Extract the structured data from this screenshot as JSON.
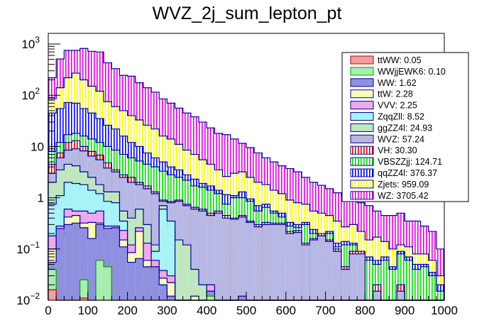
{
  "chart_data": {
    "type": "bar",
    "subtype": "stacked-histogram",
    "title": "WVZ_2j_sum_lepton_pt",
    "xlabel": "",
    "ylabel": "",
    "xlim": [
      0,
      1000
    ],
    "ylim": [
      0.01,
      1500
    ],
    "yscale": "log",
    "bin_width": 20,
    "n_bins": 50,
    "x_ticks": [
      "0",
      "100",
      "200",
      "300",
      "400",
      "500",
      "600",
      "700",
      "800",
      "900",
      "1000"
    ],
    "y_ticks": [
      {
        "value": 0.01,
        "base": "10",
        "exp": "−2"
      },
      {
        "value": 0.1,
        "base": "10",
        "exp": "−1"
      },
      {
        "value": 1,
        "base": "1",
        "exp": ""
      },
      {
        "value": 10,
        "base": "10",
        "exp": ""
      },
      {
        "value": 100,
        "base": "10",
        "exp": "2"
      },
      {
        "value": 1000,
        "base": "10",
        "exp": "3"
      }
    ],
    "legend_position": "top-right",
    "stack_order_bottom_to_top": [
      "ttWW",
      "WWjjEWK6",
      "WW",
      "ttW",
      "VVV",
      "ZqqZll",
      "ggZZ4l",
      "WVZ",
      "VH",
      "VBSZZjj",
      "qqZZ4l",
      "Zjets",
      "WZ"
    ],
    "cumulative_tops": {
      "ttWW": [
        0.016,
        0.0,
        0.0,
        0.0,
        0.011,
        0.0,
        0.0,
        0.0,
        0.0,
        0.0,
        0.0,
        0.0,
        0.0,
        0.0,
        0.0,
        0.0,
        0.0,
        0.0,
        0.0,
        0.0,
        0.0,
        0.0,
        0.0,
        0.0,
        0.0,
        0.0,
        0.0,
        0.0,
        0.0,
        0.0,
        0.0,
        0.0,
        0.0,
        0.0,
        0.0,
        0.0,
        0.0,
        0.0,
        0.0,
        0.0,
        0.0,
        0.0,
        0.0,
        0.0,
        0.0,
        0.0,
        0.0,
        0.0,
        0.0,
        0.0
      ],
      "WWjjEWK6": [
        0.04,
        0.0,
        0.0,
        0.0,
        0.025,
        0.0,
        0.06,
        0.045,
        0.0,
        0.0,
        0.0,
        0.0,
        0.0,
        0.0,
        0.0,
        0.0,
        0.0,
        0.0,
        0.0,
        0.0,
        0.012,
        0.0,
        0.0,
        0.0,
        0.0,
        0.0,
        0.0,
        0.0,
        0.0,
        0.0,
        0.0,
        0.0,
        0.0,
        0.0,
        0.0,
        0.0,
        0.0,
        0.0,
        0.0,
        0.0,
        0.0,
        0.0,
        0.0,
        0.0,
        0.0,
        0.0,
        0.0,
        0.0,
        0.0,
        0.0
      ],
      "WW": [
        0.055,
        0.25,
        0.3,
        0.32,
        0.26,
        0.16,
        0.3,
        0.25,
        0.26,
        0.11,
        0.055,
        0.065,
        0.045,
        0.045,
        0.02,
        0.012,
        0.0,
        0.0,
        0.0,
        0.0,
        0.015,
        0.0,
        0.0,
        0.0,
        0.012,
        0.0,
        0.0,
        0.0,
        0.0,
        0.0,
        0.0,
        0.0,
        0.0,
        0.0,
        0.0,
        0.0,
        0.0,
        0.0,
        0.0,
        0.0,
        0.0,
        0.0,
        0.0,
        0.0,
        0.0,
        0.0,
        0.0,
        0.0,
        0.0,
        0.0
      ],
      "ttW": [
        0.1,
        0.18,
        0.42,
        0.45,
        0.32,
        0.33,
        0.32,
        0.16,
        0.16,
        0.15,
        0.085,
        0.22,
        0.06,
        0.035,
        0.027,
        0.022,
        0.0,
        0.0,
        0.012,
        0.0,
        0.0,
        0.0,
        0.0,
        0.0,
        0.0,
        0.0,
        0.0,
        0.0,
        0.0,
        0.0,
        0.0,
        0.0,
        0.0,
        0.0,
        0.0,
        0.0,
        0.0,
        0.0,
        0.0,
        0.0,
        0.0,
        0.0,
        0.0,
        0.0,
        0.0,
        0.0,
        0.0,
        0.0,
        0.0,
        0.0
      ],
      "VVV": [
        0.18,
        0.28,
        0.6,
        0.55,
        0.55,
        0.5,
        0.55,
        0.28,
        0.28,
        0.23,
        0.12,
        0.26,
        0.13,
        0.06,
        0.038,
        0.03,
        0.0,
        0.0,
        0.0,
        0.0,
        0.02,
        0.0,
        0.0,
        0.0,
        0.0,
        0.0,
        0.0,
        0.0,
        0.0,
        0.0,
        0.0,
        0.0,
        0.0,
        0.0,
        0.0,
        0.0,
        0.0,
        0.0,
        0.0,
        0.0,
        0.0,
        0.0,
        0.0,
        0.0,
        0.0,
        0.0,
        0.0,
        0.0,
        0.0,
        0.0
      ],
      "ZqqZll": [
        0.75,
        1.1,
        2.0,
        1.9,
        1.8,
        1.4,
        1.2,
        0.85,
        0.8,
        0.35,
        0.08,
        0.13,
        0.08,
        0.09,
        0.6,
        0.35,
        0.0,
        0.0,
        0.0,
        0.0,
        0.0,
        0.0,
        0.0,
        0.0,
        0.0,
        0.0,
        0.0,
        0.0,
        0.0,
        0.0,
        0.0,
        0.0,
        0.0,
        0.0,
        0.0,
        0.0,
        0.0,
        0.0,
        0.0,
        0.0,
        0.0,
        0.0,
        0.0,
        0.0,
        0.0,
        0.0,
        0.0,
        0.0,
        0.0,
        0.0
      ],
      "ggZZ4l": [
        2.0,
        3.5,
        4.5,
        4.2,
        3.2,
        2.5,
        1.8,
        1.3,
        1.3,
        0.55,
        0.4,
        0.6,
        0.3,
        0.12,
        0.7,
        0.25,
        0.15,
        0.12,
        0.04,
        0.02,
        0.0,
        0.0,
        0.0,
        0.0,
        0.0,
        0.0,
        0.0,
        0.0,
        0.0,
        0.0,
        0.0,
        0.0,
        0.0,
        0.0,
        0.0,
        0.0,
        0.0,
        0.0,
        0.0,
        0.0,
        0.0,
        0.0,
        0.0,
        0.0,
        0.0,
        0.0,
        0.0,
        0.0,
        0.0,
        0.0
      ],
      "WVZ": [
        3.0,
        6.0,
        8.5,
        9.0,
        8.2,
        6.5,
        5.5,
        3.8,
        3.2,
        2.5,
        2.0,
        1.8,
        1.5,
        1.2,
        0.85,
        0.8,
        0.85,
        0.7,
        0.6,
        0.55,
        0.45,
        0.5,
        0.4,
        0.38,
        0.42,
        0.33,
        0.27,
        0.3,
        0.3,
        0.3,
        0.2,
        0.21,
        0.12,
        0.15,
        0.18,
        0.14,
        0.09,
        0.04,
        0.08,
        0.08,
        0.0,
        0.015,
        0.0,
        0.0,
        0.015,
        0.0,
        0.0,
        0.0,
        0.0,
        0.0
      ],
      "VH": [
        4.5,
        7.5,
        12.0,
        13.0,
        10.0,
        8.0,
        6.8,
        4.8,
        3.5,
        2.8,
        2.5,
        2.0,
        1.7,
        1.3,
        0.9,
        0.85,
        0.9,
        0.75,
        0.65,
        0.6,
        0.5,
        0.55,
        0.45,
        0.4,
        0.45,
        0.35,
        0.3,
        0.33,
        0.32,
        0.32,
        0.22,
        0.23,
        0.13,
        0.16,
        0.2,
        0.15,
        0.1,
        0.045,
        0.09,
        0.09,
        0.0,
        0.02,
        0.0,
        0.0,
        0.02,
        0.0,
        0.0,
        0.0,
        0.0,
        0.0
      ],
      "VBSZZjj": [
        8.0,
        12.0,
        17.0,
        18.0,
        16.0,
        14.0,
        12.0,
        10.0,
        8.5,
        7.0,
        6.0,
        5.2,
        4.5,
        4.0,
        3.3,
        2.8,
        2.5,
        2.2,
        1.7,
        1.6,
        1.4,
        1.2,
        0.75,
        1.0,
        1.0,
        0.85,
        0.55,
        0.65,
        0.5,
        0.42,
        0.28,
        0.26,
        0.3,
        0.2,
        0.17,
        0.2,
        0.11,
        0.12,
        0.12,
        0.07,
        0.06,
        0.05,
        0.06,
        0.04,
        0.08,
        0.06,
        0.04,
        0.045,
        0.03,
        0.015
      ],
      "qqZZ4l": [
        45.0,
        55.0,
        72.0,
        70.0,
        55.0,
        45.0,
        35.0,
        26.0,
        22.0,
        16.0,
        12.0,
        10.0,
        7.5,
        6.0,
        5.0,
        4.0,
        3.5,
        2.8,
        2.3,
        1.9,
        1.7,
        1.4,
        1.15,
        1.1,
        1.3,
        0.95,
        0.7,
        0.75,
        0.55,
        0.5,
        0.33,
        0.3,
        0.33,
        0.24,
        0.2,
        0.22,
        0.13,
        0.14,
        0.13,
        0.08,
        0.07,
        0.06,
        0.07,
        0.045,
        0.09,
        0.07,
        0.05,
        0.05,
        0.035,
        0.02
      ],
      "Zjets": [
        85.0,
        140.0,
        220.0,
        270.0,
        200.0,
        150.0,
        120.0,
        75.0,
        60.0,
        50.0,
        40.0,
        33.0,
        26.0,
        22.0,
        16.0,
        14.0,
        11.0,
        8.5,
        7.0,
        5.5,
        4.5,
        3.5,
        2.6,
        3.0,
        3.2,
        2.5,
        2.0,
        1.8,
        1.4,
        1.2,
        0.9,
        0.8,
        0.75,
        0.55,
        0.5,
        0.45,
        0.35,
        0.27,
        0.3,
        0.22,
        0.15,
        0.17,
        0.14,
        0.1,
        0.12,
        0.11,
        0.08,
        0.08,
        0.06,
        0.03
      ],
      "WZ": [
        220.0,
        510.0,
        750.0,
        750.0,
        820.0,
        720.0,
        700.0,
        430.0,
        330.0,
        245.0,
        235.0,
        175.0,
        140.0,
        115.0,
        85.0,
        70.0,
        56.0,
        45.0,
        38.0,
        30.0,
        23.0,
        18.0,
        17.0,
        14.0,
        11.5,
        9.5,
        7.5,
        6.0,
        5.0,
        4.2,
        3.7,
        3.2,
        2.5,
        2.0,
        1.75,
        1.5,
        1.25,
        1.1,
        0.95,
        0.8,
        0.7,
        0.55,
        0.45,
        0.45,
        0.5,
        0.35,
        0.35,
        0.28,
        0.22,
        0.1
      ]
    },
    "legend": [
      {
        "label": "ttWW: 0.05",
        "process": "ttWW",
        "color": "#e04040",
        "pattern": "checker",
        "line": "#c00000"
      },
      {
        "label": "WWjjEWK6: 0.10",
        "process": "WWjjEWK6",
        "color": "#50dd60",
        "pattern": "checker",
        "line": "#00a000"
      },
      {
        "label": "WW: 1.62",
        "process": "WW",
        "color": "#2020c0",
        "pattern": "checker",
        "line": "#0000a0"
      },
      {
        "label": "ttW: 2.28",
        "process": "ttW",
        "color": "#f4f470",
        "pattern": "checker",
        "line": "#0000a0"
      },
      {
        "label": "VVV: 2.25",
        "process": "VVV",
        "color": "#e050e0",
        "pattern": "checker",
        "line": "#0000a0"
      },
      {
        "label": "ZqqZll: 8.52",
        "process": "ZqqZll",
        "color": "#50e8ec",
        "pattern": "checker",
        "line": "#0000a0"
      },
      {
        "label": "ggZZ4l: 24.93",
        "process": "ggZZ4l",
        "color": "#80d080",
        "pattern": "checker",
        "line": "#0000a0"
      },
      {
        "label": "WVZ: 57.24",
        "process": "WVZ",
        "color": "#7070c8",
        "pattern": "checker",
        "line": "#0000a0"
      },
      {
        "label": "VH: 30.30",
        "process": "VH",
        "color": "#e00000",
        "pattern": "vlines",
        "line": "#0000a0"
      },
      {
        "label": "VBSZZjj: 124.71",
        "process": "VBSZZjj",
        "color": "#00e000",
        "pattern": "vlines",
        "line": "#0000a0"
      },
      {
        "label": "qqZZ4l: 376.37",
        "process": "qqZZ4l",
        "color": "#0000ff",
        "pattern": "vlines",
        "line": "#0000a0"
      },
      {
        "label": "Zjets: 959.09",
        "process": "Zjets",
        "color": "#ffff00",
        "pattern": "vlines",
        "line": "#0000a0"
      },
      {
        "label": "WZ: 3705.42",
        "process": "WZ",
        "color": "#e000e0",
        "pattern": "vlines",
        "line": "#0000a0"
      }
    ]
  }
}
